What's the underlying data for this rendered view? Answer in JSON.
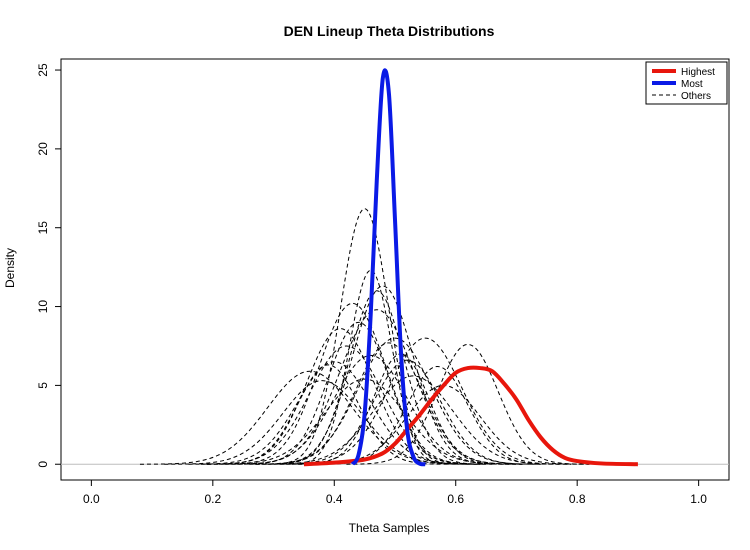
{
  "chart_data": {
    "type": "line",
    "title": "DEN Lineup Theta Distributions",
    "xlabel": "Theta Samples",
    "ylabel": "Density",
    "xlim": [
      -0.05,
      1.05
    ],
    "ylim": [
      -1,
      25.7
    ],
    "x_ticks": [
      "0.0",
      "0.2",
      "0.4",
      "0.6",
      "0.8",
      "1.0"
    ],
    "y_ticks": [
      "0",
      "5",
      "10",
      "15",
      "20",
      "25"
    ],
    "grid": false,
    "legend_position": "top-right",
    "legend": [
      "Highest",
      "Most",
      "Others"
    ],
    "colors": {
      "highest": "#e8160c",
      "most": "#0a1ae6",
      "others": "#000000",
      "baseline": "#bebebe"
    },
    "series": [
      {
        "name": "Highest",
        "x": [
          0.35,
          0.4,
          0.45,
          0.48,
          0.5,
          0.52,
          0.54,
          0.56,
          0.58,
          0.6,
          0.62,
          0.64,
          0.66,
          0.68,
          0.7,
          0.72,
          0.74,
          0.76,
          0.78,
          0.8,
          0.84,
          0.9
        ],
        "y": [
          0.0,
          0.1,
          0.3,
          0.7,
          1.3,
          2.2,
          3.1,
          4.1,
          5.0,
          5.8,
          6.1,
          6.1,
          5.9,
          5.1,
          4.1,
          2.8,
          1.7,
          0.9,
          0.4,
          0.2,
          0.05,
          0.0
        ]
      },
      {
        "name": "Most",
        "x": [
          0.43,
          0.44,
          0.45,
          0.46,
          0.47,
          0.48,
          0.49,
          0.5,
          0.51,
          0.52,
          0.53,
          0.54,
          0.55
        ],
        "y": [
          0.0,
          0.6,
          3.2,
          9.5,
          18.0,
          24.5,
          23.5,
          15.5,
          7.0,
          2.2,
          0.5,
          0.05,
          0.0
        ]
      },
      {
        "name": "Others",
        "peaks": [
          [
            0.45,
            0.04,
            16.2
          ],
          [
            0.46,
            0.035,
            12.3
          ],
          [
            0.43,
            0.055,
            10.2
          ],
          [
            0.48,
            0.05,
            11.3
          ],
          [
            0.47,
            0.045,
            11.0
          ],
          [
            0.5,
            0.06,
            8.0
          ],
          [
            0.55,
            0.06,
            8.0
          ],
          [
            0.62,
            0.05,
            7.6
          ],
          [
            0.36,
            0.07,
            5.9
          ],
          [
            0.4,
            0.06,
            6.5
          ],
          [
            0.38,
            0.065,
            5.3
          ],
          [
            0.42,
            0.06,
            7.5
          ],
          [
            0.44,
            0.05,
            9.0
          ],
          [
            0.52,
            0.055,
            6.6
          ],
          [
            0.57,
            0.05,
            6.2
          ],
          [
            0.49,
            0.055,
            7.7
          ],
          [
            0.46,
            0.06,
            6.9
          ],
          [
            0.53,
            0.065,
            5.6
          ],
          [
            0.41,
            0.055,
            8.6
          ],
          [
            0.51,
            0.045,
            7.0
          ],
          [
            0.45,
            0.065,
            5.4
          ],
          [
            0.58,
            0.06,
            5.0
          ],
          [
            0.39,
            0.05,
            6.3
          ],
          [
            0.47,
            0.06,
            9.8
          ]
        ]
      }
    ]
  }
}
